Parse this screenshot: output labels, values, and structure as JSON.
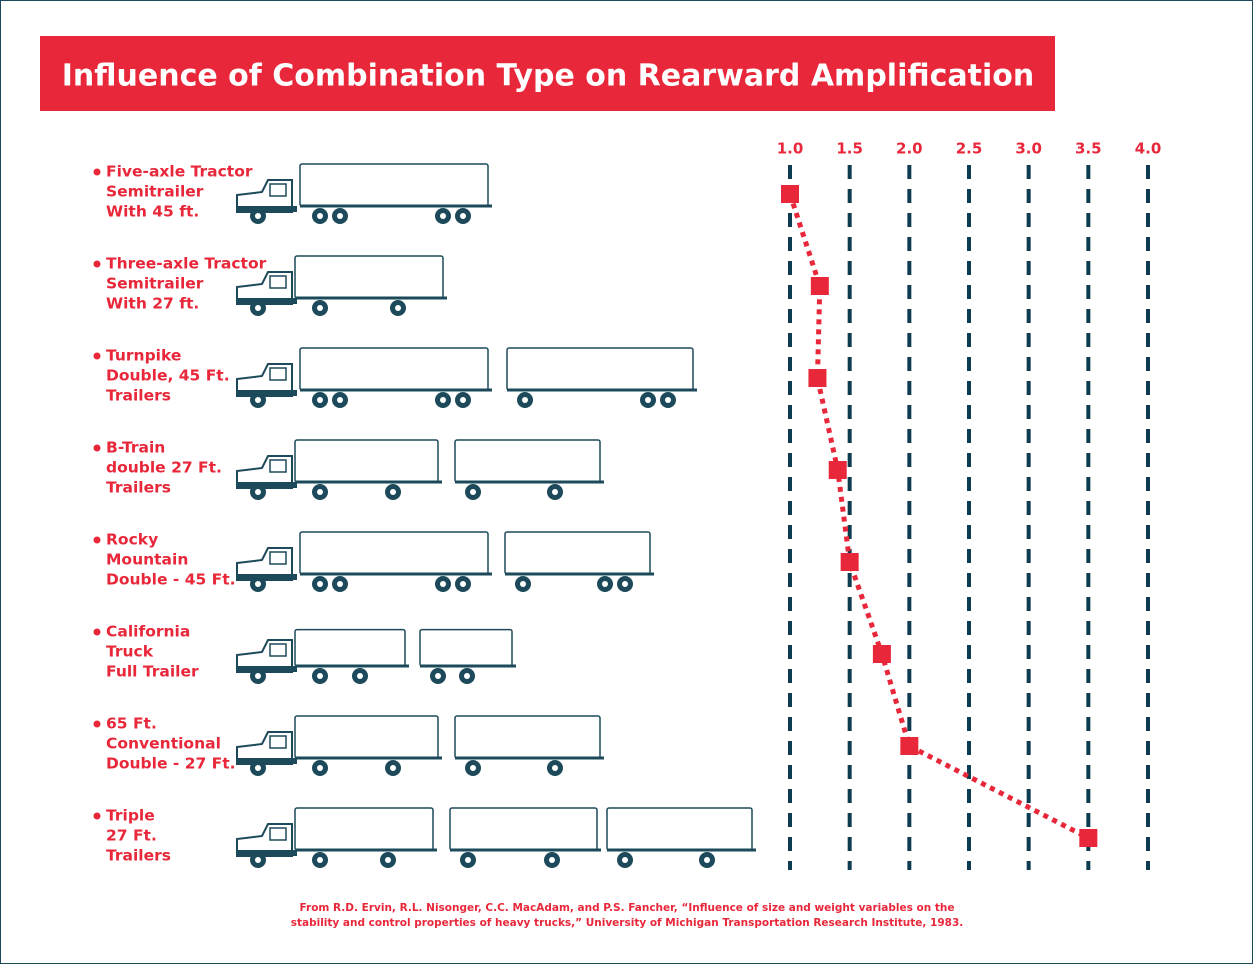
{
  "chart_data": {
    "type": "line",
    "title": "Influence of Combination Type on Rearward Amplification",
    "categories": [
      [
        "Five-axle Tractor",
        "Semitrailer",
        "With 45 ft."
      ],
      [
        "Three-axle Tractor",
        "Semitrailer",
        "With 27 ft."
      ],
      [
        "Turnpike",
        "Double, 45 Ft.",
        "Trailers"
      ],
      [
        "B-Train",
        "double 27 Ft.",
        "Trailers"
      ],
      [
        "Rocky",
        "Mountain",
        "Double - 45 Ft."
      ],
      [
        "California",
        "Truck",
        "Full Trailer"
      ],
      [
        "65 Ft.",
        "Conventional",
        "Double - 27 Ft."
      ],
      [
        "Triple",
        "27 Ft.",
        "Trailers"
      ]
    ],
    "values": [
      1.0,
      1.25,
      1.23,
      1.4,
      1.5,
      1.77,
      2.0,
      3.5
    ],
    "color": "#e8283a",
    "xlim": [
      1.0,
      4.0
    ],
    "xticks": [
      {
        "value": 1.0,
        "label": "1.0"
      },
      1.5,
      {
        "value": 2.0,
        "label": "2.0"
      },
      2.5,
      {
        "value": 3.0,
        "label": "3.0"
      },
      3.5,
      {
        "value": 4.0,
        "label": "4.0"
      }
    ],
    "grid": true,
    "source": [
      "From R.D. Ervin, R.L. Nisonger, C.C. MacAdam, and P.S. Fancher, “Influence of size and weight variables on the",
      "stability and control properties of heavy trucks,” University of Michigan Transportation Research Institute, 1983."
    ]
  }
}
